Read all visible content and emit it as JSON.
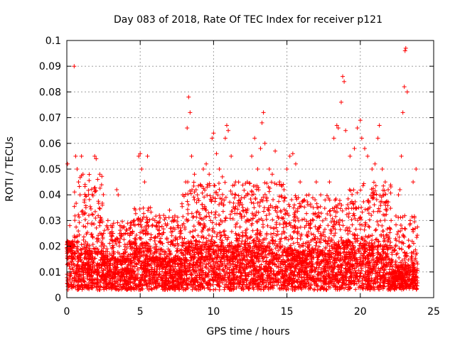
{
  "chart_data": {
    "type": "scatter",
    "title": "Day 083 of 2018, Rate Of TEC Index for receiver p121",
    "xlabel": "GPS time / hours",
    "ylabel": "ROTI / TECUs",
    "xlim": [
      0,
      25
    ],
    "ylim": [
      0,
      0.1
    ],
    "xticks": [
      "0",
      "5",
      "10",
      "15",
      "20",
      "25"
    ],
    "yticks": [
      "0",
      "0.01",
      "0.02",
      "0.03",
      "0.04",
      "0.05",
      "0.06",
      "0.07",
      "0.08",
      "0.09",
      "0.1"
    ],
    "grid": true,
    "marker": "+",
    "color": "#ff0000",
    "points": [
      [
        0.05,
        0.052
      ],
      [
        0.2,
        0.028
      ],
      [
        0.4,
        0.022
      ],
      [
        0.5,
        0.09
      ],
      [
        0.6,
        0.055
      ],
      [
        0.7,
        0.05
      ],
      [
        0.8,
        0.045
      ],
      [
        0.9,
        0.04
      ],
      [
        1.0,
        0.055
      ],
      [
        1.1,
        0.048
      ],
      [
        1.2,
        0.038
      ],
      [
        1.3,
        0.035
      ],
      [
        1.5,
        0.032
      ],
      [
        1.7,
        0.029
      ],
      [
        1.9,
        0.055
      ],
      [
        2.0,
        0.054
      ],
      [
        2.1,
        0.046
      ],
      [
        2.3,
        0.03
      ],
      [
        2.5,
        0.025
      ],
      [
        2.8,
        0.03
      ],
      [
        3.0,
        0.028
      ],
      [
        3.2,
        0.022
      ],
      [
        3.4,
        0.042
      ],
      [
        3.5,
        0.04
      ],
      [
        3.7,
        0.025
      ],
      [
        4.0,
        0.025
      ],
      [
        4.3,
        0.022
      ],
      [
        4.6,
        0.03
      ],
      [
        4.9,
        0.055
      ],
      [
        5.0,
        0.056
      ],
      [
        5.1,
        0.05
      ],
      [
        5.3,
        0.045
      ],
      [
        5.5,
        0.055
      ],
      [
        5.7,
        0.035
      ],
      [
        6.0,
        0.03
      ],
      [
        6.3,
        0.025
      ],
      [
        6.6,
        0.032
      ],
      [
        6.8,
        0.028
      ],
      [
        7.0,
        0.034
      ],
      [
        7.3,
        0.03
      ],
      [
        7.6,
        0.028
      ],
      [
        7.9,
        0.04
      ],
      [
        8.1,
        0.045
      ],
      [
        8.2,
        0.066
      ],
      [
        8.3,
        0.078
      ],
      [
        8.4,
        0.072
      ],
      [
        8.5,
        0.055
      ],
      [
        8.7,
        0.048
      ],
      [
        8.9,
        0.04
      ],
      [
        9.1,
        0.044
      ],
      [
        9.3,
        0.05
      ],
      [
        9.5,
        0.052
      ],
      [
        9.7,
        0.048
      ],
      [
        9.9,
        0.062
      ],
      [
        10.0,
        0.064
      ],
      [
        10.2,
        0.056
      ],
      [
        10.4,
        0.05
      ],
      [
        10.6,
        0.047
      ],
      [
        10.8,
        0.062
      ],
      [
        10.9,
        0.067
      ],
      [
        11.0,
        0.065
      ],
      [
        11.2,
        0.055
      ],
      [
        11.5,
        0.045
      ],
      [
        11.8,
        0.038
      ],
      [
        12.0,
        0.035
      ],
      [
        12.3,
        0.045
      ],
      [
        12.6,
        0.055
      ],
      [
        12.8,
        0.062
      ],
      [
        13.0,
        0.05
      ],
      [
        13.2,
        0.058
      ],
      [
        13.3,
        0.068
      ],
      [
        13.4,
        0.072
      ],
      [
        13.5,
        0.06
      ],
      [
        13.8,
        0.05
      ],
      [
        14.0,
        0.048
      ],
      [
        14.2,
        0.057
      ],
      [
        14.5,
        0.045
      ],
      [
        14.8,
        0.042
      ],
      [
        15.0,
        0.05
      ],
      [
        15.2,
        0.055
      ],
      [
        15.4,
        0.056
      ],
      [
        15.6,
        0.052
      ],
      [
        15.9,
        0.045
      ],
      [
        16.2,
        0.038
      ],
      [
        16.5,
        0.04
      ],
      [
        16.8,
        0.035
      ],
      [
        17.0,
        0.045
      ],
      [
        17.3,
        0.04
      ],
      [
        17.6,
        0.038
      ],
      [
        17.9,
        0.045
      ],
      [
        18.2,
        0.062
      ],
      [
        18.4,
        0.067
      ],
      [
        18.5,
        0.066
      ],
      [
        18.7,
        0.076
      ],
      [
        18.8,
        0.086
      ],
      [
        18.9,
        0.084
      ],
      [
        19.0,
        0.065
      ],
      [
        19.3,
        0.055
      ],
      [
        19.6,
        0.058
      ],
      [
        19.8,
        0.066
      ],
      [
        20.0,
        0.069
      ],
      [
        20.1,
        0.062
      ],
      [
        20.3,
        0.058
      ],
      [
        20.5,
        0.055
      ],
      [
        20.8,
        0.05
      ],
      [
        21.0,
        0.052
      ],
      [
        21.2,
        0.062
      ],
      [
        21.3,
        0.067
      ],
      [
        21.5,
        0.05
      ],
      [
        21.7,
        0.045
      ],
      [
        21.9,
        0.042
      ],
      [
        22.1,
        0.03
      ],
      [
        22.4,
        0.02
      ],
      [
        22.6,
        0.04
      ],
      [
        22.7,
        0.042
      ],
      [
        22.8,
        0.055
      ],
      [
        22.9,
        0.072
      ],
      [
        23.0,
        0.082
      ],
      [
        23.05,
        0.096
      ],
      [
        23.1,
        0.097
      ],
      [
        23.2,
        0.08
      ],
      [
        23.4,
        0.03
      ],
      [
        23.6,
        0.045
      ],
      [
        23.8,
        0.05
      ]
    ],
    "density": [
      [
        0,
        0.5,
        0.02,
        0.022
      ],
      [
        0.5,
        2.5,
        0.018,
        0.048
      ],
      [
        2.5,
        4.5,
        0.015,
        0.03
      ],
      [
        4.5,
        5.8,
        0.018,
        0.035
      ],
      [
        5.8,
        7.8,
        0.015,
        0.032
      ],
      [
        7.8,
        9.0,
        0.02,
        0.045
      ],
      [
        9.0,
        11.5,
        0.02,
        0.045
      ],
      [
        11.5,
        14.8,
        0.02,
        0.045
      ],
      [
        14.8,
        17.9,
        0.018,
        0.04
      ],
      [
        17.9,
        19.2,
        0.02,
        0.04
      ],
      [
        19.2,
        22.1,
        0.02,
        0.045
      ],
      [
        22.1,
        22.4,
        0.01,
        0.02
      ],
      [
        22.4,
        23.9,
        0.012,
        0.032
      ]
    ]
  }
}
